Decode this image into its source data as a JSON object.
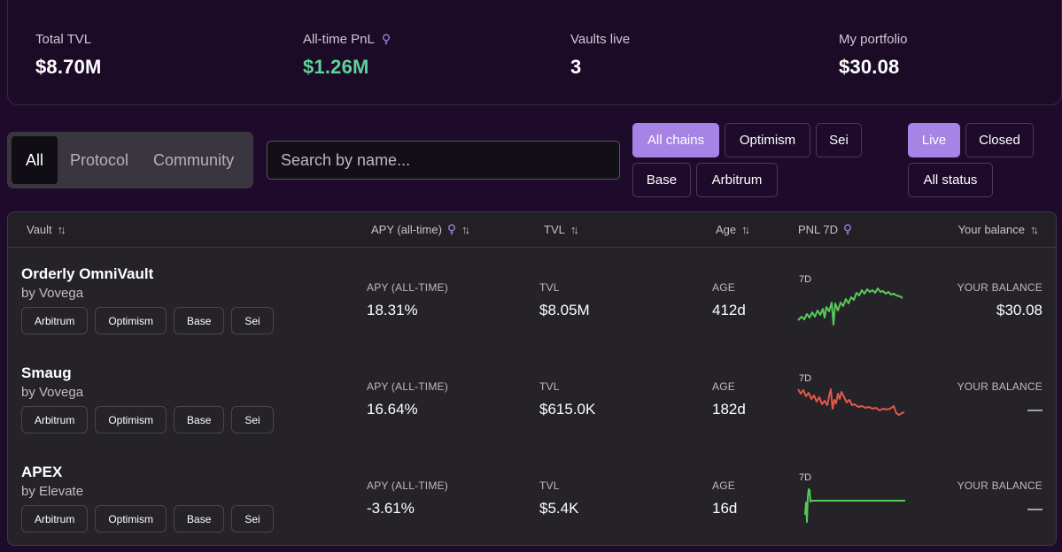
{
  "stats": [
    {
      "label": "Total TVL",
      "value": "$8.70M",
      "hint": false,
      "green": false
    },
    {
      "label": "All-time PnL",
      "value": "$1.26M",
      "hint": true,
      "green": true
    },
    {
      "label": "Vaults live",
      "value": "3",
      "hint": false,
      "green": false
    },
    {
      "label": "My portfolio",
      "value": "$30.08",
      "hint": false,
      "green": false
    }
  ],
  "segment": {
    "all": "All",
    "protocol": "Protocol",
    "community": "Community",
    "selected": "All"
  },
  "search": {
    "placeholder": "Search by name..."
  },
  "chain_filters": [
    "All chains",
    "Optimism",
    "Sei",
    "Base",
    "Arbitrum"
  ],
  "chain_selected": "All chains",
  "status_filters": [
    "Live",
    "Closed",
    "All status"
  ],
  "status_selected": "Live",
  "table": {
    "headers": {
      "vault": "Vault",
      "apy": "APY (all-time)",
      "tvl": "TVL",
      "age": "Age",
      "pnl": "PNL 7D",
      "balance": "Your balance"
    },
    "cell_labels": {
      "apy": "APY (ALL-TIME)",
      "tvl": "TVL",
      "age": "AGE",
      "spark": "7D",
      "balance": "YOUR BALANCE"
    },
    "rows": [
      {
        "name": "Orderly OmniVault",
        "by": "by Vovega",
        "chains": [
          "Arbitrum",
          "Optimism",
          "Base",
          "Sei"
        ],
        "apy": "18.31%",
        "tvl": "$8.05M",
        "age": "412d",
        "balance": "$30.08",
        "trend_color": "#56c957"
      },
      {
        "name": "Smaug",
        "by": "by Vovega",
        "chains": [
          "Arbitrum",
          "Optimism",
          "Base",
          "Sei"
        ],
        "apy": "16.64%",
        "tvl": "$615.0K",
        "age": "182d",
        "balance": "—",
        "trend_color": "#e0584c"
      },
      {
        "name": "APEX",
        "by": "by Elevate",
        "chains": [
          "Arbitrum",
          "Optimism",
          "Base",
          "Sei"
        ],
        "apy": "-3.61%",
        "tvl": "$5.4K",
        "age": "16d",
        "balance": "—",
        "trend_color": "#56c957"
      }
    ]
  },
  "colors": {
    "accent": "#a683e4",
    "positive": "#5fd39a",
    "hint_icon": "#a683e4"
  },
  "icons": {
    "hint": "lightbulb-icon",
    "sort": "sort-arrows-icon"
  }
}
